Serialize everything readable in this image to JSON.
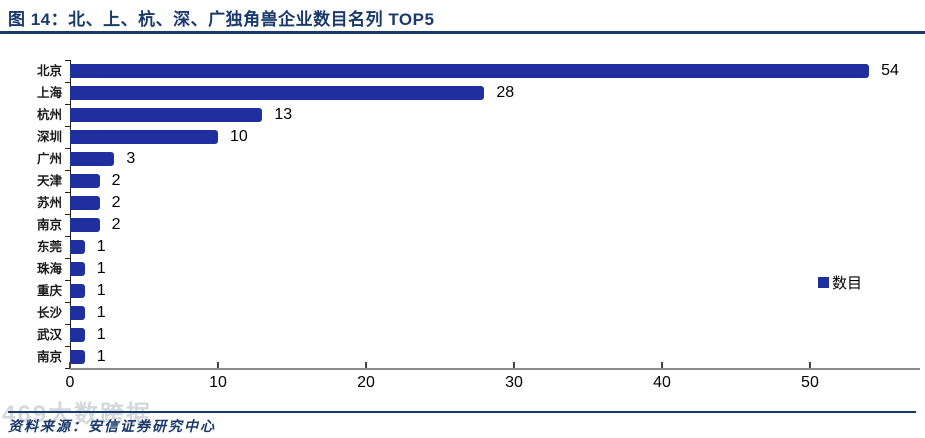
{
  "header": {
    "title": "图 14：北、上、杭、深、广独角兽企业数目名列 TOP5"
  },
  "chart_data": {
    "type": "bar",
    "orientation": "horizontal",
    "title": "",
    "xlabel": "",
    "ylabel": "",
    "categories": [
      "北京",
      "上海",
      "杭州",
      "深圳",
      "广州",
      "天津",
      "苏州",
      "南京",
      "东莞",
      "珠海",
      "重庆",
      "长沙",
      "武汉",
      "南京"
    ],
    "series": [
      {
        "name": "数目",
        "values": [
          54,
          28,
          13,
          10,
          3,
          2,
          2,
          2,
          1,
          1,
          1,
          1,
          1,
          1
        ]
      }
    ],
    "data_labels": [
      "54",
      "28",
      "13",
      "10",
      "3",
      "2",
      "2",
      "2",
      "1",
      "1",
      "1",
      "1",
      "1",
      "1"
    ],
    "xlim": [
      0,
      57.3
    ],
    "xticks": [
      0,
      10,
      20,
      30,
      40,
      50
    ],
    "xtick_labels": [
      "0",
      "10",
      "20",
      "30",
      "40",
      "50"
    ],
    "grid": false,
    "legend": {
      "label": "数目",
      "position": "right-middle"
    },
    "colors": {
      "bar": "#1f2f9e",
      "axis_line": "#8c8c8c",
      "title_navy": "#1a3a6b"
    }
  },
  "footer": {
    "source": "资料来源：安信证券研究中心",
    "watermark": "469大数跨据"
  }
}
